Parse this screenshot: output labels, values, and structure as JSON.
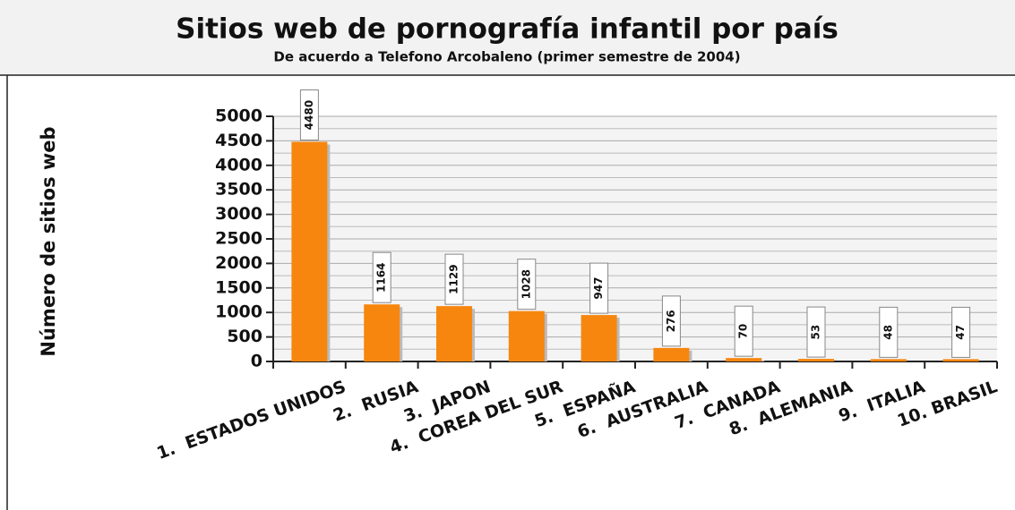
{
  "chart_data": {
    "type": "bar",
    "title": "Sitios web de pornografía infantil por país",
    "subtitle": "De acuerdo a Telefono Arcobaleno (primer semestre de 2004)",
    "y_label": "Número de sitios web",
    "categories": [
      "1.  ESTADOS UNIDOS",
      "2.  RUSIA",
      "3.  JAPON",
      "4.  COREA DEL SUR",
      "5.  ESPAÑA",
      "6.  AUSTRALIA",
      "7.  CANADA",
      "8.  ALEMANIA",
      "9.  ITALIA",
      "10. BRASIL"
    ],
    "values": [
      4480,
      1164,
      1129,
      1028,
      947,
      276,
      70,
      53,
      48,
      47
    ],
    "color": "#f7860f",
    "ylim": [
      0,
      5000
    ],
    "yticks": [
      0,
      500,
      1000,
      1500,
      2000,
      2500,
      3000,
      3500,
      4000,
      4500,
      5000
    ],
    "grid": true
  }
}
